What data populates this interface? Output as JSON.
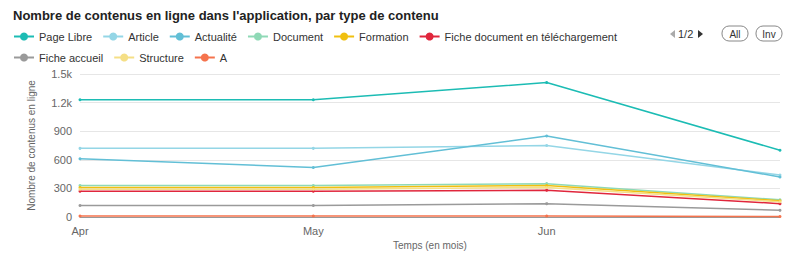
{
  "chart_data": {
    "type": "line",
    "title": "Nombre de contenus en ligne dans l'application, par type de contenu",
    "x_label": "Temps (en mois)",
    "y_label": "Nombre de contenus en ligne",
    "categories": [
      "Apr",
      "May",
      "Jun",
      null
    ],
    "series": [
      {
        "name": "Page Libre",
        "color": "#1cbcb4",
        "values": [
          1230,
          1230,
          1410,
          700
        ]
      },
      {
        "name": "Article",
        "color": "#94d6e6",
        "values": [
          720,
          720,
          750,
          440
        ]
      },
      {
        "name": "Actualité",
        "color": "#62bfd6",
        "values": [
          610,
          520,
          850,
          420
        ]
      },
      {
        "name": "Document",
        "color": "#8fd9b6",
        "values": [
          330,
          330,
          350,
          180
        ]
      },
      {
        "name": "Formation",
        "color": "#f0c010",
        "values": [
          310,
          310,
          330,
          170
        ]
      },
      {
        "name": "Fiche document en téléchargement",
        "color": "#e0263c",
        "values": [
          270,
          270,
          280,
          140
        ]
      },
      {
        "name": "Fiche accueil",
        "color": "#9a9a9a",
        "values": [
          120,
          120,
          140,
          70
        ]
      },
      {
        "name": "Structure",
        "color": "#f5df86",
        "values": [
          290,
          290,
          310,
          160
        ]
      },
      {
        "name": "A",
        "color": "#f5734d",
        "values": [
          10,
          10,
          10,
          5
        ]
      }
    ],
    "ylim": [
      0,
      1500
    ],
    "yticks": [
      0,
      300,
      600,
      900,
      {
        "value": 1200,
        "label": "1.2k"
      },
      {
        "value": 1500,
        "label": "1.5k"
      }
    ],
    "grid": true,
    "marker": "circle",
    "legend": "top",
    "annotations": [
      "1/2",
      "All",
      "Inv"
    ]
  }
}
